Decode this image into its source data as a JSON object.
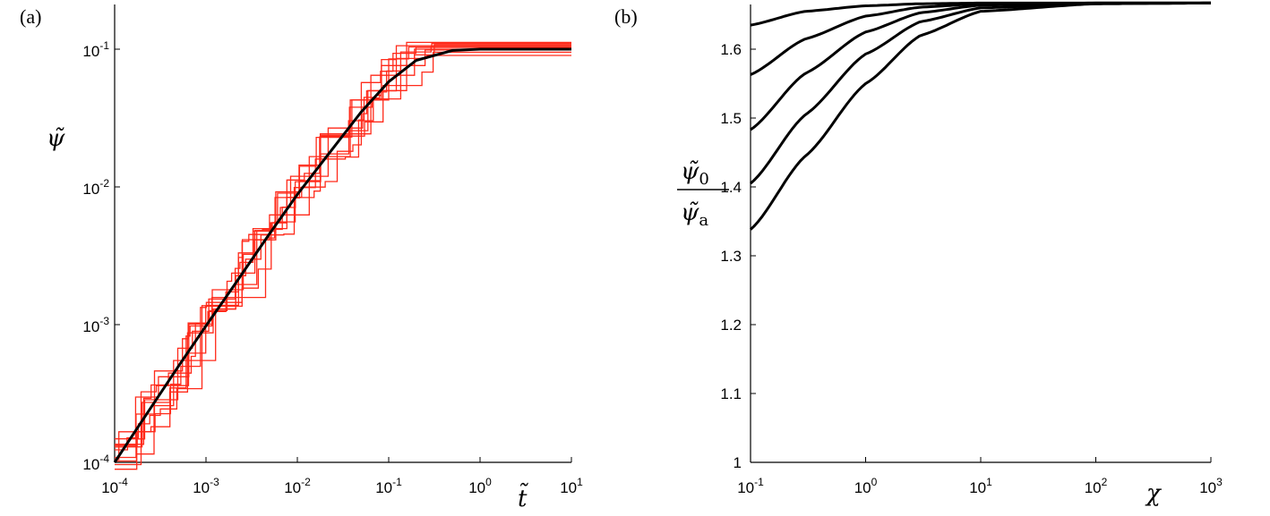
{
  "chart_data": [
    {
      "panel_label": "(a)",
      "type": "line",
      "xscale": "log",
      "yscale": "log",
      "xlim": [
        0.0001,
        10
      ],
      "ylim": [
        0.0001,
        0.2
      ],
      "xlabel": "t̃",
      "ylabel": "ψ̃",
      "x_ticks": [
        {
          "base": "10",
          "exp": "-4"
        },
        {
          "base": "10",
          "exp": "-3"
        },
        {
          "base": "10",
          "exp": "-2"
        },
        {
          "base": "10",
          "exp": "-1"
        },
        {
          "base": "10",
          "exp": "0"
        },
        {
          "base": "10",
          "exp": "1"
        }
      ],
      "y_ticks": [
        {
          "base": "10",
          "exp": "-4"
        },
        {
          "base": "10",
          "exp": "-3"
        },
        {
          "base": "10",
          "exp": "-2"
        },
        {
          "base": "10",
          "exp": "-1"
        }
      ],
      "mean_curve": {
        "color": "#000000",
        "x": [
          0.0001,
          0.0002,
          0.0005,
          0.001,
          0.002,
          0.005,
          0.01,
          0.02,
          0.05,
          0.1,
          0.2,
          0.5,
          1,
          2,
          5,
          10
        ],
        "y": [
          0.0001,
          0.0002,
          0.0005,
          0.00098,
          0.0019,
          0.0046,
          0.0088,
          0.016,
          0.035,
          0.058,
          0.083,
          0.098,
          0.1,
          0.1,
          0.1,
          0.1
        ]
      },
      "stochastic_realisations": {
        "color": "#ff2a1a",
        "count": 10,
        "plateau_values": [
          0.09,
          0.095,
          0.1,
          0.103,
          0.106,
          0.108,
          0.11,
          0.099,
          0.104,
          0.112
        ]
      },
      "grid": false
    },
    {
      "panel_label": "(b)",
      "type": "line",
      "xscale": "log",
      "xlim": [
        0.1,
        1000
      ],
      "ylim": [
        1.0,
        1.667
      ],
      "xlabel": "χ",
      "ylabel_numerator": "ψ̃",
      "ylabel_numerator_sub": "0",
      "ylabel_denominator": "ψ̃",
      "ylabel_denominator_sub": "a",
      "x_ticks": [
        {
          "base": "10",
          "exp": "-1"
        },
        {
          "base": "10",
          "exp": "0"
        },
        {
          "base": "10",
          "exp": "1"
        },
        {
          "base": "10",
          "exp": "2"
        },
        {
          "base": "10",
          "exp": "3"
        }
      ],
      "y_ticks": [
        "1",
        "1.1",
        "1.2",
        "1.3",
        "1.4",
        "1.5",
        "1.6"
      ],
      "y_tick_values": [
        1.0,
        1.1,
        1.2,
        1.3,
        1.4,
        1.5,
        1.6
      ],
      "asymptote": 1.667,
      "series": [
        {
          "values_at_start": 1.635,
          "x": [
            0.1,
            0.3,
            1,
            3,
            10,
            100,
            1000
          ],
          "y": [
            1.635,
            1.655,
            1.663,
            1.666,
            1.667,
            1.667,
            1.667
          ]
        },
        {
          "values_at_start": 1.563,
          "x": [
            0.1,
            0.3,
            1,
            3,
            10,
            100,
            1000
          ],
          "y": [
            1.563,
            1.615,
            1.648,
            1.661,
            1.666,
            1.667,
            1.667
          ]
        },
        {
          "values_at_start": 1.483,
          "x": [
            0.1,
            0.3,
            1,
            3,
            10,
            100,
            1000
          ],
          "y": [
            1.483,
            1.565,
            1.625,
            1.653,
            1.664,
            1.667,
            1.667
          ]
        },
        {
          "values_at_start": 1.405,
          "x": [
            0.1,
            0.3,
            1,
            3,
            10,
            100,
            1000
          ],
          "y": [
            1.405,
            1.505,
            1.593,
            1.64,
            1.66,
            1.666,
            1.667
          ]
        },
        {
          "values_at_start": 1.338,
          "x": [
            0.1,
            0.3,
            1,
            3,
            10,
            100,
            1000
          ],
          "y": [
            1.338,
            1.445,
            1.55,
            1.62,
            1.655,
            1.666,
            1.667
          ]
        }
      ],
      "grid": false
    }
  ]
}
